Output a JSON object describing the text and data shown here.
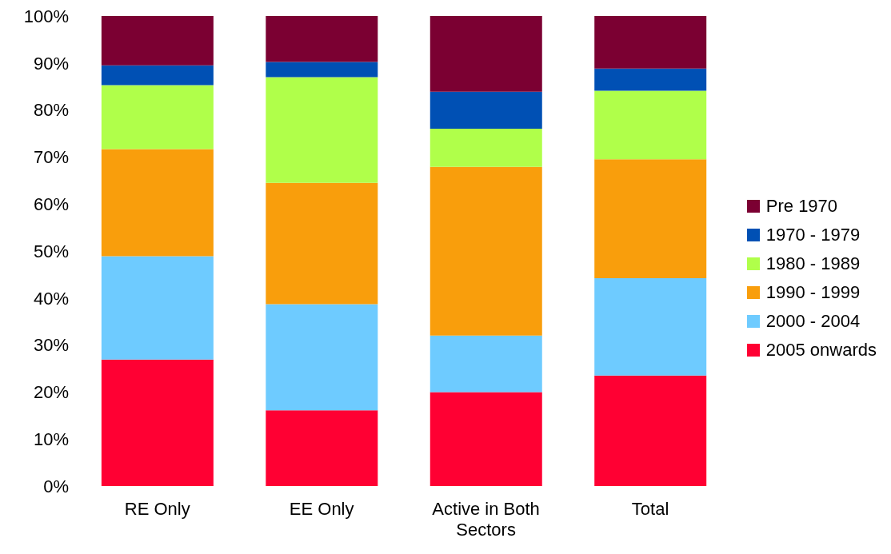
{
  "chart_data": {
    "type": "bar",
    "stacked": true,
    "categories": [
      "RE Only",
      "EE Only",
      "Active in Both Sectors",
      "Total"
    ],
    "series": [
      {
        "name": "2005 onwards",
        "color": "#ff0033",
        "values": [
          26.9,
          16.1,
          20.0,
          23.5
        ]
      },
      {
        "name": "2000 - 2004",
        "color": "#6ecbff",
        "values": [
          22.0,
          22.6,
          12.0,
          20.7
        ]
      },
      {
        "name": "1990 - 1999",
        "color": "#f99e0c",
        "values": [
          22.8,
          25.8,
          35.9,
          25.3
        ]
      },
      {
        "name": "1980 - 1989",
        "color": "#b0ff4a",
        "values": [
          13.6,
          22.5,
          8.1,
          14.6
        ]
      },
      {
        "name": "1970 - 1979",
        "color": "#0050b4",
        "values": [
          4.2,
          3.2,
          7.9,
          4.7
        ]
      },
      {
        "name": "Pre 1970",
        "color": "#7b0032",
        "values": [
          10.5,
          9.8,
          16.1,
          11.2
        ]
      }
    ],
    "ylim": [
      0,
      100
    ],
    "yticks": [
      {
        "value": 0,
        "label": "0%"
      },
      {
        "value": 10,
        "label": "10%"
      },
      {
        "value": 20,
        "label": "20%"
      },
      {
        "value": 30,
        "label": "30%"
      },
      {
        "value": 40,
        "label": "40%"
      },
      {
        "value": 50,
        "label": "50%"
      },
      {
        "value": 60,
        "label": "60%"
      },
      {
        "value": 70,
        "label": "70%"
      },
      {
        "value": 80,
        "label": "80%"
      },
      {
        "value": 90,
        "label": "90%"
      },
      {
        "value": 100,
        "label": "100%"
      }
    ],
    "grid": false,
    "legend": "right"
  }
}
